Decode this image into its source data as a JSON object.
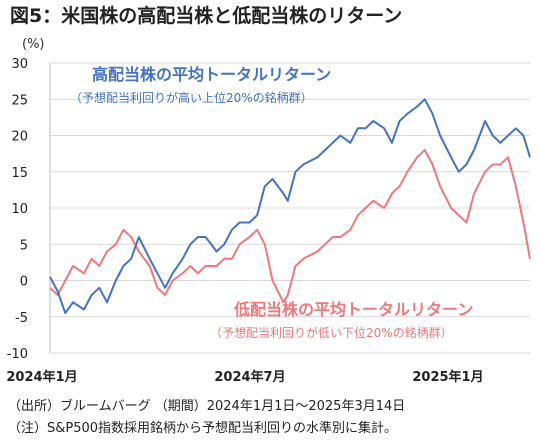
{
  "title": "図5：米国株の高配当株と低配当株のリターン",
  "ylabel": "(%)",
  "colors": {
    "high": "#4472c4",
    "low": "#f0787a",
    "grid": "#d9d9d9"
  },
  "annotations": {
    "high_title": "高配当株の平均トータルリターン",
    "high_sub": "（予想配当利回りが高い上位20%の銘柄群）",
    "low_title": "低配当株の平均トータルリターン",
    "low_sub": "（予想配当利回りが低い下位20%の銘柄群）"
  },
  "notes": {
    "source": "（出所）ブルームバーグ （期間）2024年1月1日～2025年3月14日",
    "note": "（注）S&P500指数採用銘柄から予想配当利回りの水準別に集計。"
  },
  "chart_data": {
    "type": "line",
    "ylim": [
      -10,
      30
    ],
    "yticks": [
      30,
      25,
      20,
      15,
      10,
      5,
      0,
      -5,
      -10
    ],
    "xlim": [
      "2024-01-01",
      "2025-03-14"
    ],
    "xticks": [
      {
        "label": "2024年1月",
        "date": "2024-01-01"
      },
      {
        "label": "2024年7月",
        "date": "2024-07-01"
      },
      {
        "label": "2025年1月",
        "date": "2025-01-01"
      }
    ],
    "grid": "horizontal",
    "series": [
      {
        "name": "高配当株の平均トータルリターン",
        "x": [
          "2024-01-01",
          "2024-01-08",
          "2024-01-15",
          "2024-01-22",
          "2024-02-01",
          "2024-02-08",
          "2024-02-15",
          "2024-02-22",
          "2024-03-01",
          "2024-03-08",
          "2024-03-15",
          "2024-03-22",
          "2024-04-01",
          "2024-04-08",
          "2024-04-15",
          "2024-04-22",
          "2024-05-01",
          "2024-05-08",
          "2024-05-15",
          "2024-05-22",
          "2024-06-01",
          "2024-06-08",
          "2024-06-15",
          "2024-06-22",
          "2024-07-01",
          "2024-07-08",
          "2024-07-15",
          "2024-07-22",
          "2024-08-01",
          "2024-08-05",
          "2024-08-12",
          "2024-08-19",
          "2024-09-01",
          "2024-09-08",
          "2024-09-15",
          "2024-09-22",
          "2024-10-01",
          "2024-10-08",
          "2024-10-15",
          "2024-10-22",
          "2024-11-01",
          "2024-11-08",
          "2024-11-15",
          "2024-11-22",
          "2024-12-01",
          "2024-12-08",
          "2024-12-15",
          "2024-12-22",
          "2025-01-01",
          "2025-01-08",
          "2025-01-15",
          "2025-01-22",
          "2025-02-01",
          "2025-02-08",
          "2025-02-15",
          "2025-02-22",
          "2025-03-01",
          "2025-03-08",
          "2025-03-14"
        ],
        "values": [
          0.5,
          -1.5,
          -4.5,
          -3,
          -4,
          -2,
          -1,
          -3,
          0,
          2,
          3,
          6,
          3,
          1,
          -1,
          1,
          3,
          5,
          6,
          6,
          4,
          5,
          7,
          8,
          8,
          9,
          13,
          14,
          12,
          11,
          15,
          16,
          17,
          18,
          19,
          20,
          19,
          21,
          21,
          22,
          21,
          19,
          22,
          23,
          24,
          25,
          23,
          20,
          17,
          15,
          16,
          18,
          22,
          20,
          19,
          20,
          21,
          20,
          17
        ]
      },
      {
        "name": "低配当株の平均トータルリターン",
        "x": [
          "2024-01-01",
          "2024-01-08",
          "2024-01-15",
          "2024-01-22",
          "2024-02-01",
          "2024-02-08",
          "2024-02-15",
          "2024-02-22",
          "2024-03-01",
          "2024-03-08",
          "2024-03-15",
          "2024-03-22",
          "2024-04-01",
          "2024-04-08",
          "2024-04-15",
          "2024-04-22",
          "2024-05-01",
          "2024-05-08",
          "2024-05-15",
          "2024-05-22",
          "2024-06-01",
          "2024-06-08",
          "2024-06-15",
          "2024-06-22",
          "2024-07-01",
          "2024-07-08",
          "2024-07-15",
          "2024-07-22",
          "2024-08-01",
          "2024-08-05",
          "2024-08-12",
          "2024-08-19",
          "2024-09-01",
          "2024-09-08",
          "2024-09-15",
          "2024-09-22",
          "2024-10-01",
          "2024-10-08",
          "2024-10-15",
          "2024-10-22",
          "2024-11-01",
          "2024-11-08",
          "2024-11-15",
          "2024-11-22",
          "2024-12-01",
          "2024-12-08",
          "2024-12-15",
          "2024-12-22",
          "2025-01-01",
          "2025-01-08",
          "2025-01-15",
          "2025-01-22",
          "2025-02-01",
          "2025-02-08",
          "2025-02-15",
          "2025-02-22",
          "2025-03-01",
          "2025-03-08",
          "2025-03-14"
        ],
        "values": [
          -1,
          -2,
          0,
          2,
          1,
          3,
          2,
          4,
          5,
          7,
          6,
          4,
          2,
          -1,
          -2,
          0,
          1,
          2,
          1,
          2,
          2,
          3,
          3,
          5,
          6,
          7,
          5,
          0,
          -3,
          -2,
          2,
          3,
          4,
          5,
          6,
          6,
          7,
          9,
          10,
          11,
          10,
          12,
          13,
          15,
          17,
          18,
          16,
          13,
          10,
          9,
          8,
          12,
          15,
          16,
          16,
          17,
          13,
          8,
          3
        ]
      }
    ]
  }
}
